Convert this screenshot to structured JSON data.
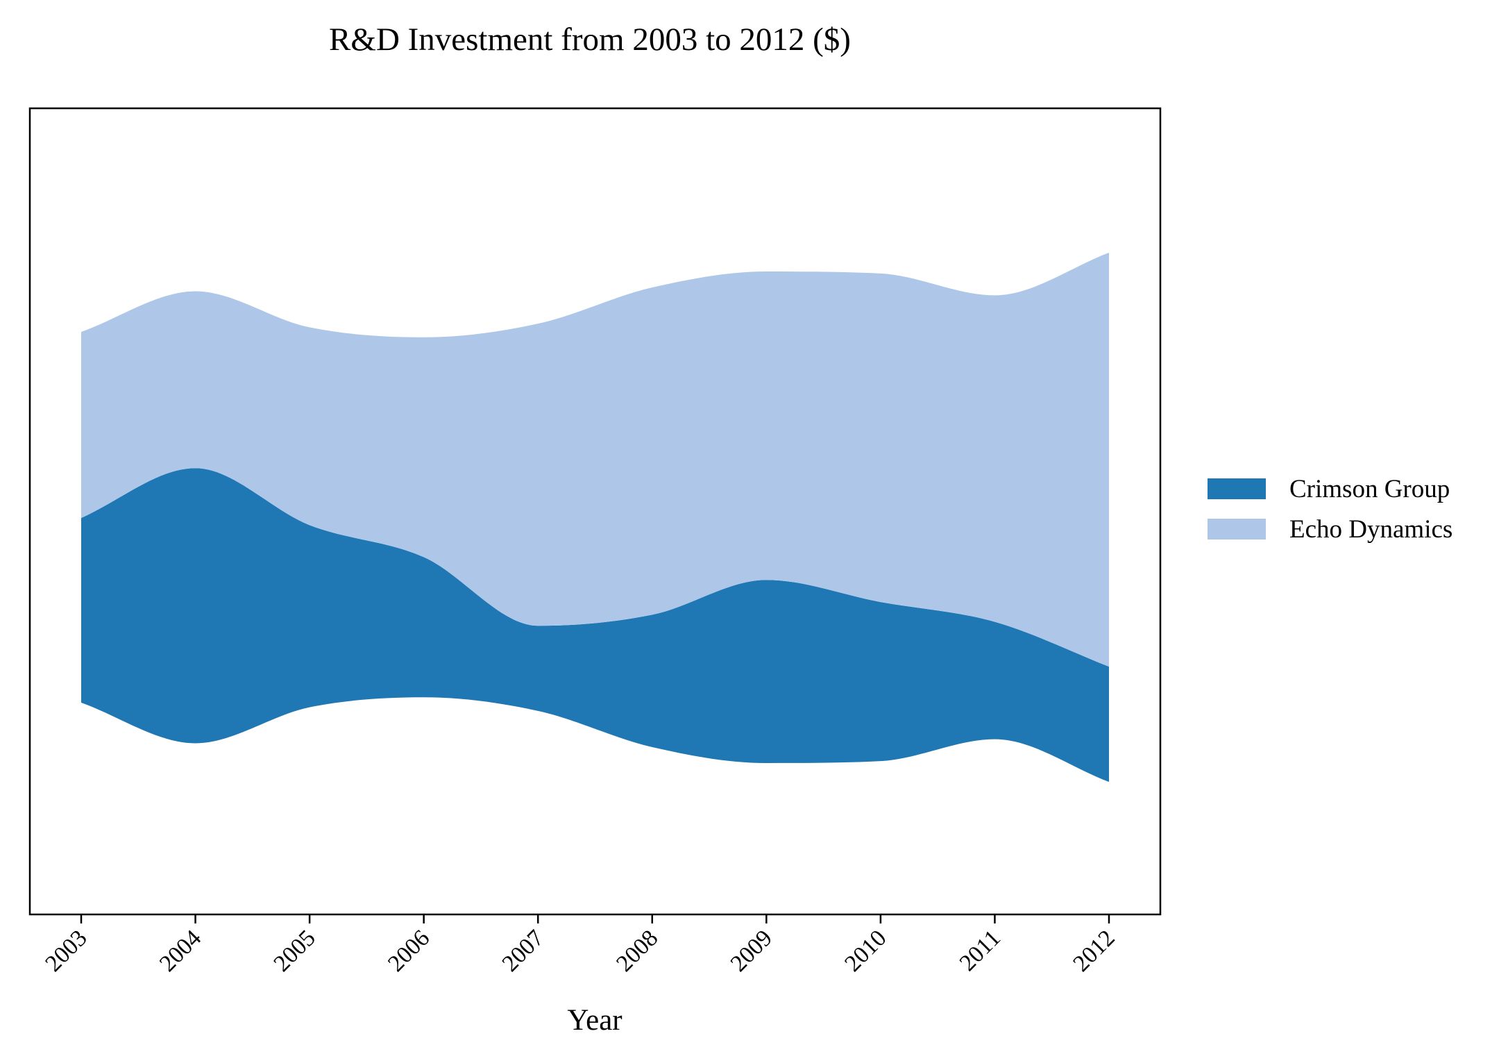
{
  "chart_data": {
    "type": "area",
    "subtype": "streamgraph",
    "title": "R&D Investment from 2003 to 2012 ($)",
    "xlabel": "Year",
    "ylabel": "",
    "categories": [
      "2003",
      "2004",
      "2005",
      "2006",
      "2007",
      "2008",
      "2009",
      "2010",
      "2011",
      "2012"
    ],
    "series": [
      {
        "name": "Crimson Group",
        "color": "#1f77b4",
        "values": [
          7050,
          10500,
          6950,
          5350,
          3250,
          5050,
          6990,
          6070,
          4480,
          4400
        ]
      },
      {
        "name": "Echo Dynamics",
        "color": "#aec7e8",
        "values": [
          7100,
          6750,
          7550,
          8390,
          11530,
          12490,
          11770,
          12540,
          12460,
          15800
        ]
      }
    ],
    "baseline": "symmetric",
    "legend": {
      "position": "right",
      "entries": [
        "Crimson Group",
        "Echo Dynamics"
      ]
    },
    "y_axis_visible": false,
    "grid": false
  }
}
